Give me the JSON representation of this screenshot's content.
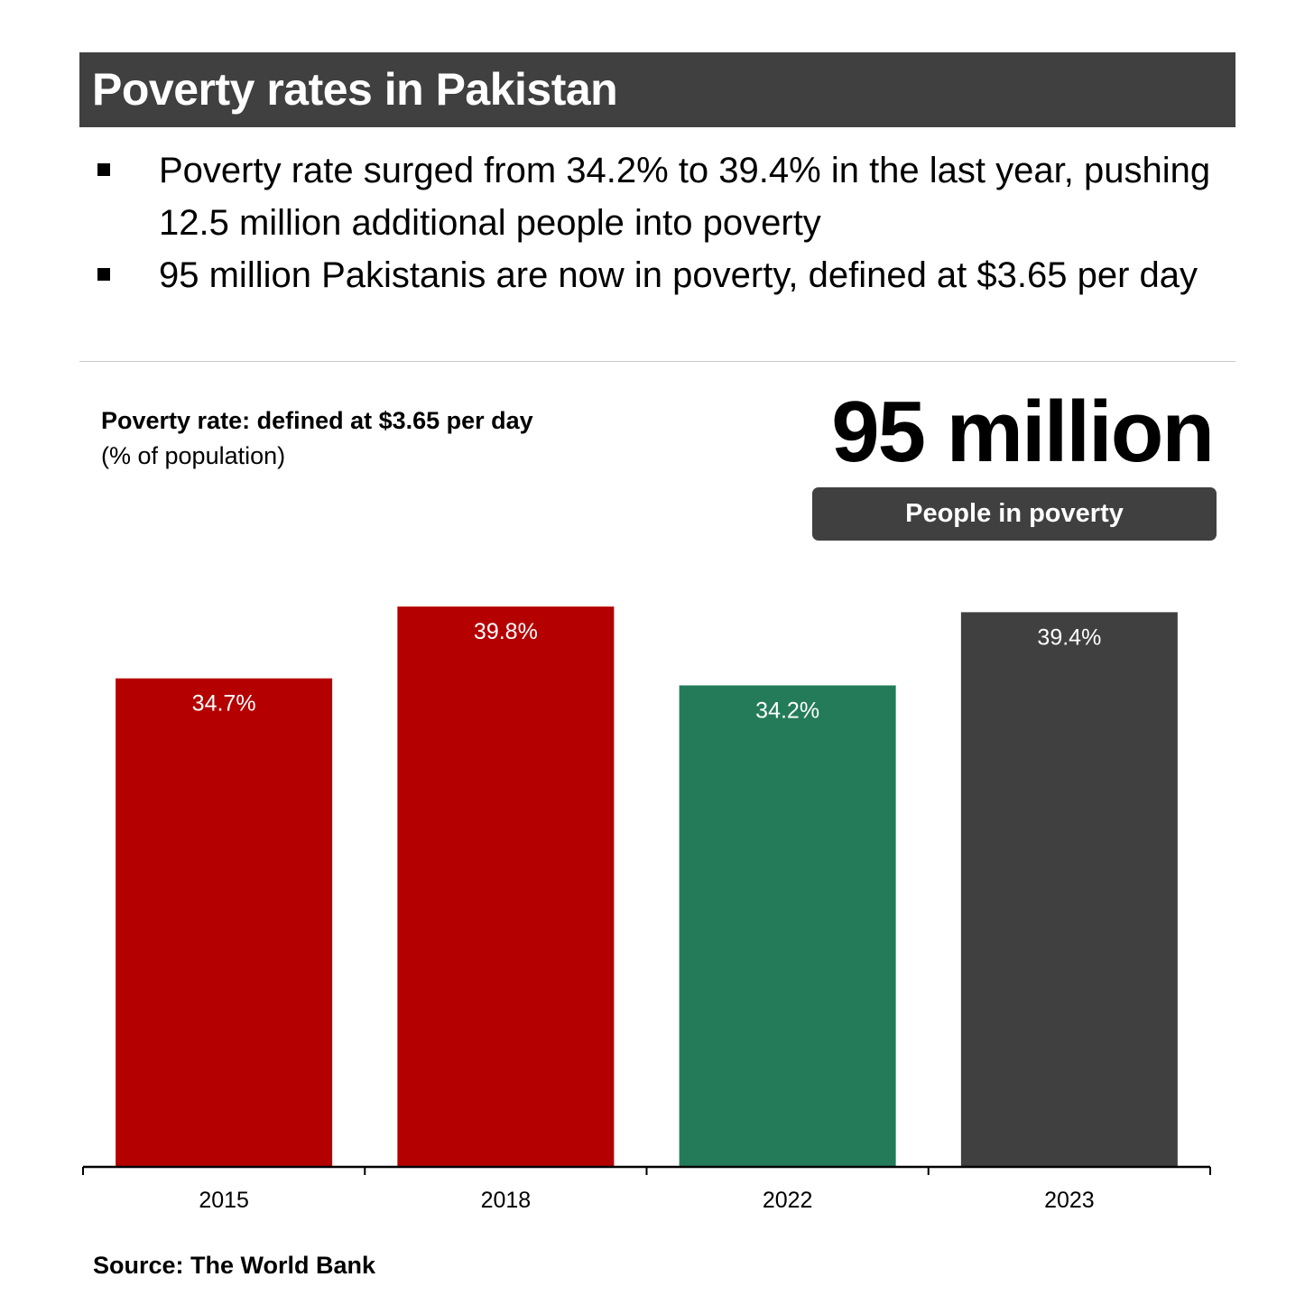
{
  "header": {
    "title": "Poverty rates in Pakistan"
  },
  "bullets": [
    "Poverty rate surged from 34.2% to 39.4% in the last year, pushing 12.5 million additional people into poverty",
    "95 million Pakistanis are now in poverty, defined at $3.65 per day"
  ],
  "highlight": {
    "value": "95 million",
    "label": "People in poverty"
  },
  "chart_data": {
    "type": "bar",
    "title": "Poverty rate: defined at $3.65 per day",
    "subtitle": "(% of population)",
    "categories": [
      "2015",
      "2018",
      "2022",
      "2023"
    ],
    "values": [
      34.7,
      39.8,
      34.2,
      39.4
    ],
    "data_labels": [
      "34.7%",
      "39.8%",
      "34.2%",
      "39.4%"
    ],
    "colors": [
      "#b50000",
      "#b50000",
      "#237b5a",
      "#404040"
    ],
    "xlabel": "",
    "ylabel": "",
    "ylim": [
      0,
      40
    ],
    "grid": false
  },
  "source": "Source: The World Bank"
}
